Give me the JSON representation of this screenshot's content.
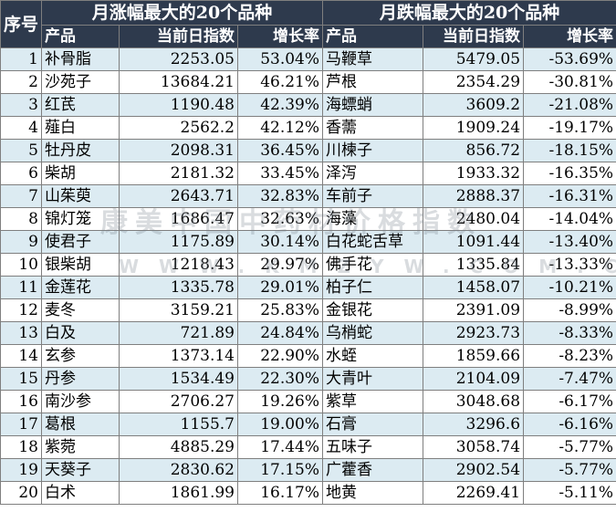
{
  "header": {
    "seq_label": "序号",
    "left_title": "月涨幅最大的20个品种",
    "right_title": "月跌幅最大的20个品种",
    "col_name": "产品",
    "col_index": "当前日指数",
    "col_rate": "增长率"
  },
  "watermark": {
    "line1": "康美中国中药材价格指数",
    "line2": "WWW.KMZYW.COM.CN"
  },
  "rows": [
    {
      "seq": "1",
      "up_name": "补骨脂",
      "up_index": "2253.05",
      "up_rate": "53.04%",
      "down_name": "马鞭草",
      "down_index": "5479.05",
      "down_rate": "-53.69%"
    },
    {
      "seq": "2",
      "up_name": "沙苑子",
      "up_index": "13684.21",
      "up_rate": "46.21%",
      "down_name": "芦根",
      "down_index": "2354.29",
      "down_rate": "-30.81%"
    },
    {
      "seq": "3",
      "up_name": "红芪",
      "up_index": "1190.48",
      "up_rate": "42.39%",
      "down_name": "海螵蛸",
      "down_index": "3609.2",
      "down_rate": "-21.08%"
    },
    {
      "seq": "4",
      "up_name": "薤白",
      "up_index": "2562.2",
      "up_rate": "42.12%",
      "down_name": "香薷",
      "down_index": "1909.24",
      "down_rate": "-19.17%"
    },
    {
      "seq": "5",
      "up_name": "牡丹皮",
      "up_index": "2098.31",
      "up_rate": "36.45%",
      "down_name": "川楝子",
      "down_index": "856.72",
      "down_rate": "-18.15%"
    },
    {
      "seq": "6",
      "up_name": "柴胡",
      "up_index": "2181.32",
      "up_rate": "33.45%",
      "down_name": "泽泻",
      "down_index": "1933.32",
      "down_rate": "-16.35%"
    },
    {
      "seq": "7",
      "up_name": "山茱萸",
      "up_index": "2643.71",
      "up_rate": "32.83%",
      "down_name": "车前子",
      "down_index": "2888.37",
      "down_rate": "-16.31%"
    },
    {
      "seq": "8",
      "up_name": "锦灯笼",
      "up_index": "1686.47",
      "up_rate": "32.63%",
      "down_name": "海藻",
      "down_index": "2480.04",
      "down_rate": "-14.04%"
    },
    {
      "seq": "9",
      "up_name": "使君子",
      "up_index": "1175.89",
      "up_rate": "30.14%",
      "down_name": "白花蛇舌草",
      "down_index": "1091.44",
      "down_rate": "-13.40%"
    },
    {
      "seq": "10",
      "up_name": "银柴胡",
      "up_index": "1218.43",
      "up_rate": "29.97%",
      "down_name": "佛手花",
      "down_index": "1335.84",
      "down_rate": "-13.33%"
    },
    {
      "seq": "11",
      "up_name": "金莲花",
      "up_index": "1335.78",
      "up_rate": "29.01%",
      "down_name": "柏子仁",
      "down_index": "1458.07",
      "down_rate": "-10.21%"
    },
    {
      "seq": "12",
      "up_name": "麦冬",
      "up_index": "3159.21",
      "up_rate": "25.83%",
      "down_name": "金银花",
      "down_index": "2391.09",
      "down_rate": "-8.99%"
    },
    {
      "seq": "13",
      "up_name": "白及",
      "up_index": "721.89",
      "up_rate": "24.84%",
      "down_name": "乌梢蛇",
      "down_index": "2923.73",
      "down_rate": "-8.33%"
    },
    {
      "seq": "14",
      "up_name": "玄参",
      "up_index": "1373.14",
      "up_rate": "22.90%",
      "down_name": "水蛭",
      "down_index": "1859.66",
      "down_rate": "-8.23%"
    },
    {
      "seq": "15",
      "up_name": "丹参",
      "up_index": "1534.49",
      "up_rate": "22.30%",
      "down_name": "大青叶",
      "down_index": "2104.09",
      "down_rate": "-7.47%"
    },
    {
      "seq": "16",
      "up_name": "南沙参",
      "up_index": "2706.27",
      "up_rate": "19.26%",
      "down_name": "紫草",
      "down_index": "3048.68",
      "down_rate": "-6.17%"
    },
    {
      "seq": "17",
      "up_name": "葛根",
      "up_index": "1155.7",
      "up_rate": "19.00%",
      "down_name": "石膏",
      "down_index": "3296.6",
      "down_rate": "-6.16%"
    },
    {
      "seq": "18",
      "up_name": "紫菀",
      "up_index": "4885.29",
      "up_rate": "17.44%",
      "down_name": "五味子",
      "down_index": "3058.74",
      "down_rate": "-5.77%"
    },
    {
      "seq": "19",
      "up_name": "天葵子",
      "up_index": "2830.62",
      "up_rate": "17.15%",
      "down_name": "广藿香",
      "down_index": "2902.54",
      "down_rate": "-5.77%"
    },
    {
      "seq": "20",
      "up_name": "白术",
      "up_index": "1861.99",
      "up_rate": "16.17%",
      "down_name": "地黄",
      "down_index": "2269.41",
      "down_rate": "-5.11%"
    }
  ]
}
